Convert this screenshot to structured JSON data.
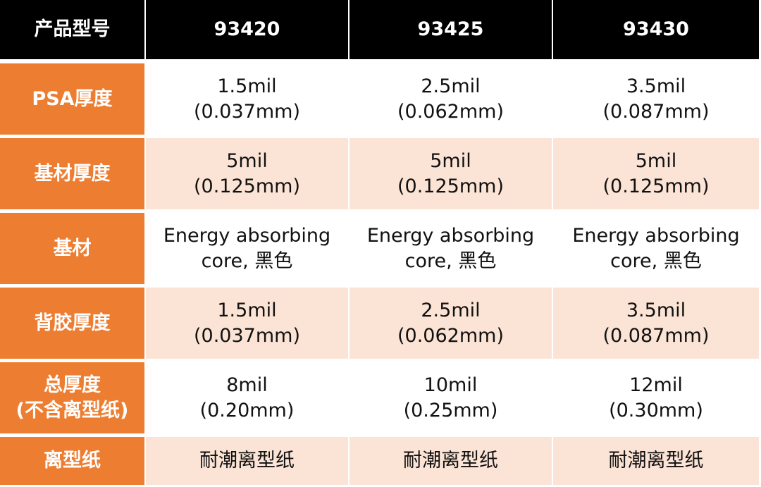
{
  "table": {
    "header": [
      "产品型号",
      "93420",
      "93425",
      "93430"
    ],
    "rows": [
      [
        [
          "PSA厚度"
        ],
        [
          "1.5mil",
          "(0.037mm)"
        ],
        [
          "2.5mil",
          "(0.062mm)"
        ],
        [
          "3.5mil",
          "(0.087mm)"
        ]
      ],
      [
        [
          "基材厚度"
        ],
        [
          "5mil",
          "(0.125mm)"
        ],
        [
          "5mil",
          "(0.125mm)"
        ],
        [
          "5mil",
          "(0.125mm)"
        ]
      ],
      [
        [
          "基材"
        ],
        [
          "Energy absorbing",
          "core, 黑色"
        ],
        [
          "Energy absorbing",
          "core, 黑色"
        ],
        [
          "Energy absorbing",
          "core, 黑色"
        ]
      ],
      [
        [
          "背胶厚度"
        ],
        [
          "1.5mil",
          "(0.037mm)"
        ],
        [
          "2.5mil",
          "(0.062mm)"
        ],
        [
          "3.5mil",
          "(0.087mm)"
        ]
      ],
      [
        [
          "总厚度",
          "(不含离型纸)"
        ],
        [
          "8mil",
          "(0.20mm)"
        ],
        [
          "10mil",
          "(0.25mm)"
        ],
        [
          "12mil",
          "(0.30mm)"
        ]
      ],
      [
        [
          "离型纸"
        ],
        [
          "耐潮离型纸"
        ],
        [
          "耐潮离型纸"
        ],
        [
          "耐潮离型纸"
        ]
      ]
    ]
  }
}
